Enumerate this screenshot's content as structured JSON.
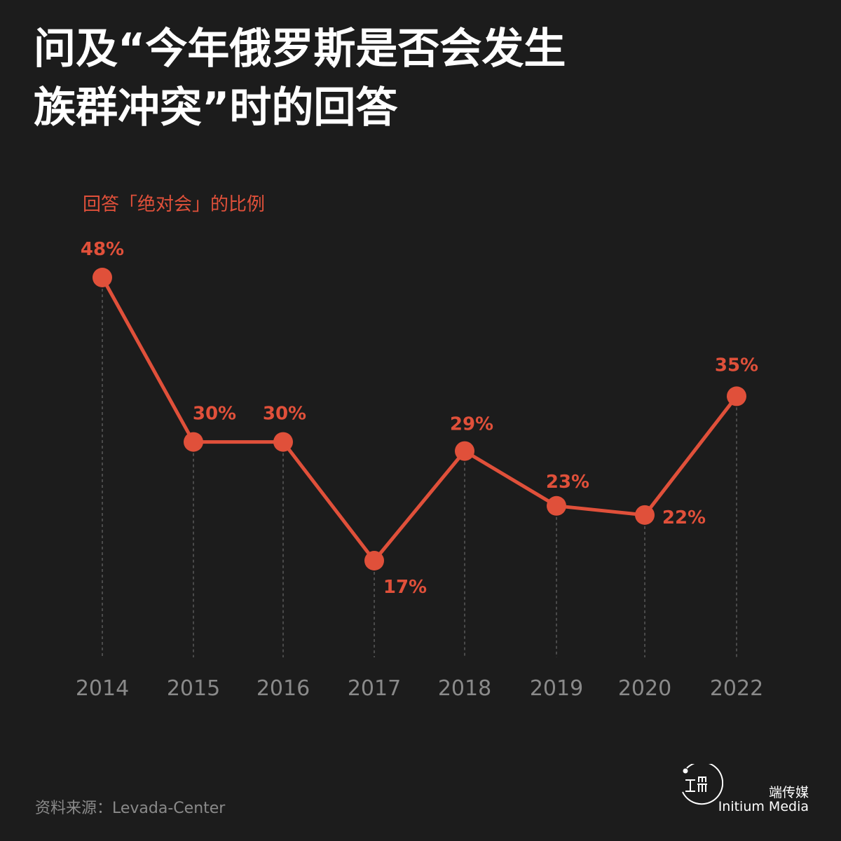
{
  "title": {
    "line1": "问及“今年俄罗斯是否会发生",
    "line2": "族群冲突”时的回答"
  },
  "source": "资料来源：Levada-Center",
  "brand": {
    "name": "端传媒",
    "name_en": "Initium Media"
  },
  "colors": {
    "background": "#1c1c1c",
    "accent": "#e0503a",
    "title": "#ffffff",
    "tick": "#8a8a8a",
    "guide": "#6a6a6a"
  },
  "chart_data": {
    "type": "line",
    "title": "",
    "ylabel": "回答「绝对会」的比例",
    "xlabel": "",
    "categories": [
      "2014",
      "2015",
      "2016",
      "2017",
      "2018",
      "2019",
      "2020",
      "2022"
    ],
    "series": [
      {
        "name": "",
        "values": [
          48,
          30,
          30,
          17,
          29,
          23,
          22,
          35
        ],
        "labels": [
          "48%",
          "30%",
          "30%",
          "17%",
          "29%",
          "23%",
          "22%",
          "35%"
        ]
      }
    ],
    "ylim": [
      0,
      60
    ],
    "grid": false,
    "legend": "none",
    "guide_lines": "dashed vertical lines from each point down to the axis"
  }
}
